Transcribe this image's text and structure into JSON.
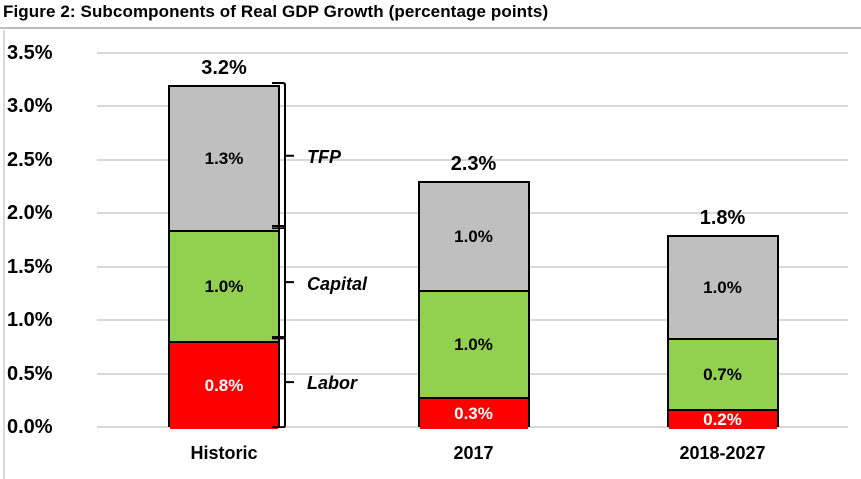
{
  "title": "Figure 2: Subcomponents of Real GDP Growth (percentage points)",
  "colors": {
    "labor": "#FF0000",
    "capital": "#92D050",
    "tfp": "#BFBFBF",
    "gridline": "#D9D9D9",
    "bar_border": "#000000",
    "label_on_labor": "#FFFFFF",
    "label_default": "#000000"
  },
  "chart_data": {
    "type": "bar",
    "stacked": true,
    "title": "Figure 2: Subcomponents of Real GDP Growth (percentage points)",
    "categories": [
      "Historic",
      "2017",
      "2018-2027"
    ],
    "series": [
      {
        "name": "Labor",
        "color": "#FF0000",
        "label_color": "#FFFFFF",
        "values": [
          0.8,
          0.3,
          0.2
        ],
        "labels": [
          "0.8%",
          "0.3%",
          "0.2%"
        ]
      },
      {
        "name": "Capital",
        "color": "#92D050",
        "label_color": "#000000",
        "values": [
          1.0,
          1.0,
          0.7
        ],
        "labels": [
          "1.0%",
          "1.0%",
          "0.7%"
        ]
      },
      {
        "name": "TFP",
        "color": "#BFBFBF",
        "label_color": "#000000",
        "values": [
          1.3,
          1.0,
          1.0
        ],
        "labels": [
          "1.3%",
          "1.0%",
          "1.0%"
        ]
      }
    ],
    "totals": [
      3.2,
      2.3,
      1.8
    ],
    "total_labels": [
      "3.2%",
      "2.3%",
      "1.8%"
    ],
    "y_ticks": [
      {
        "value": 3.5,
        "label": "3.5%"
      },
      {
        "value": 3.0,
        "label": "3.0%"
      },
      {
        "value": 2.5,
        "label": "2.5%"
      },
      {
        "value": 2.0,
        "label": "2.0%"
      },
      {
        "value": 1.5,
        "label": "1.5%"
      },
      {
        "value": 1.0,
        "label": "1.0%"
      },
      {
        "value": 0.5,
        "label": "0.5%"
      },
      {
        "value": 0.0,
        "label": "0.0%"
      }
    ],
    "ylim": [
      0,
      3.5
    ],
    "grid": true,
    "legend_position": "none",
    "brace_annotations": [
      "TFP",
      "Capital",
      "Labor"
    ]
  }
}
